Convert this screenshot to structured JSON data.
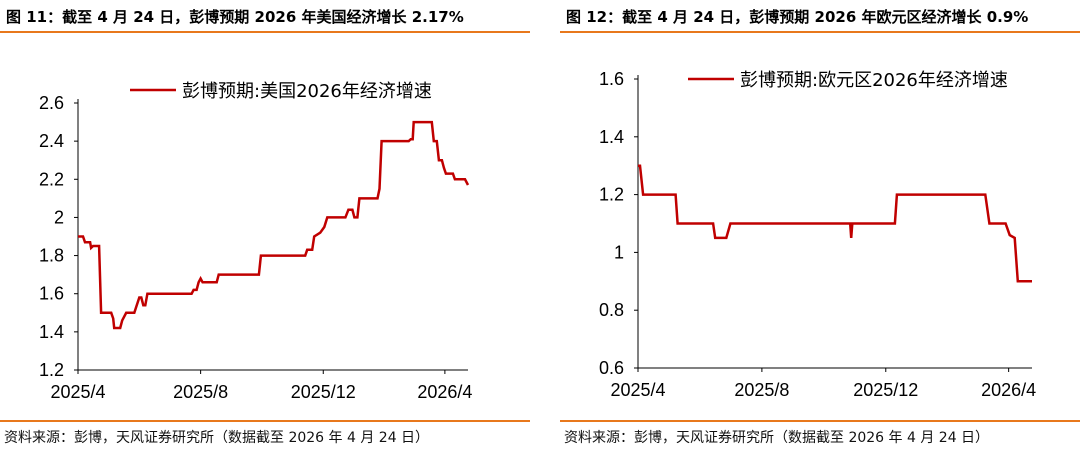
{
  "charts": [
    {
      "figure_title": "图 11：截至 4 月 24 日，彭博预期 2026 年美国经济增长 2.17%",
      "source": "资料来源：彭博，天风证券研究所（数据截至 2026 年 4 月 24 日）",
      "accent_color": "#c00000",
      "rule_color": "#e8781c"
    },
    {
      "figure_title": "图 12：截至 4 月 24 日，彭博预期 2026 年欧元区经济增长 0.9%",
      "source": "资料来源：彭博，天风证券研究所（数据截至 2026 年 4 月 24 日）",
      "accent_color": "#c00000",
      "rule_color": "#e8781c"
    }
  ],
  "chart_data": [
    {
      "type": "line",
      "title": "",
      "xlabel": "",
      "ylabel": "",
      "ylim": [
        1.2,
        2.6
      ],
      "yticks": [
        "2.6",
        "2.4",
        "2.2",
        "2",
        "1.8",
        "1.6",
        "1.4",
        "1.2"
      ],
      "ytick_values": [
        2.6,
        2.4,
        2.2,
        2.0,
        1.8,
        1.6,
        1.4,
        1.2
      ],
      "xlim": [
        "2025-04-01",
        "2026-04-24"
      ],
      "xticks": [
        "2025/4",
        "2025/8",
        "2025/12",
        "2026/4"
      ],
      "xtick_dates": [
        "2025-04-01",
        "2025-08-01",
        "2025-12-01",
        "2026-04-01"
      ],
      "grid": false,
      "legend_position": "top-center",
      "series": [
        {
          "name": "彭博预期:美国2026年经济增速",
          "color": "#c00000",
          "points": [
            [
              "2025-04-01",
              1.9
            ],
            [
              "2025-04-06",
              1.9
            ],
            [
              "2025-04-08",
              1.87
            ],
            [
              "2025-04-13",
              1.87
            ],
            [
              "2025-04-14",
              1.84
            ],
            [
              "2025-04-16",
              1.85
            ],
            [
              "2025-04-22",
              1.85
            ],
            [
              "2025-04-24",
              1.5
            ],
            [
              "2025-05-04",
              1.5
            ],
            [
              "2025-05-06",
              1.47
            ],
            [
              "2025-05-07",
              1.42
            ],
            [
              "2025-05-13",
              1.42
            ],
            [
              "2025-05-15",
              1.46
            ],
            [
              "2025-05-19",
              1.5
            ],
            [
              "2025-05-27",
              1.5
            ],
            [
              "2025-06-01",
              1.58
            ],
            [
              "2025-06-03",
              1.58
            ],
            [
              "2025-06-05",
              1.54
            ],
            [
              "2025-06-07",
              1.54
            ],
            [
              "2025-06-09",
              1.6
            ],
            [
              "2025-07-23",
              1.6
            ],
            [
              "2025-07-25",
              1.62
            ],
            [
              "2025-07-28",
              1.62
            ],
            [
              "2025-07-30",
              1.66
            ],
            [
              "2025-08-01",
              1.68
            ],
            [
              "2025-08-03",
              1.66
            ],
            [
              "2025-08-17",
              1.66
            ],
            [
              "2025-08-19",
              1.7
            ],
            [
              "2025-09-28",
              1.7
            ],
            [
              "2025-09-30",
              1.8
            ],
            [
              "2025-11-13",
              1.8
            ],
            [
              "2025-11-15",
              1.83
            ],
            [
              "2025-11-20",
              1.83
            ],
            [
              "2025-11-22",
              1.9
            ],
            [
              "2025-11-28",
              1.92
            ],
            [
              "2025-12-02",
              1.95
            ],
            [
              "2025-12-05",
              2.0
            ],
            [
              "2025-12-23",
              2.0
            ],
            [
              "2025-12-26",
              2.04
            ],
            [
              "2025-12-30",
              2.04
            ],
            [
              "2026-01-01",
              2.0
            ],
            [
              "2026-01-04",
              2.0
            ],
            [
              "2026-01-06",
              2.1
            ],
            [
              "2026-01-24",
              2.1
            ],
            [
              "2026-01-26",
              2.15
            ],
            [
              "2026-01-28",
              2.4
            ],
            [
              "2026-02-24",
              2.4
            ],
            [
              "2026-02-26",
              2.41
            ],
            [
              "2026-02-28",
              2.41
            ],
            [
              "2026-03-01",
              2.5
            ],
            [
              "2026-03-19",
              2.5
            ],
            [
              "2026-03-21",
              2.4
            ],
            [
              "2026-03-24",
              2.4
            ],
            [
              "2026-03-26",
              2.3
            ],
            [
              "2026-03-29",
              2.3
            ],
            [
              "2026-03-31",
              2.26
            ],
            [
              "2026-04-02",
              2.23
            ],
            [
              "2026-04-09",
              2.23
            ],
            [
              "2026-04-11",
              2.2
            ],
            [
              "2026-04-21",
              2.2
            ],
            [
              "2026-04-24",
              2.17
            ]
          ]
        }
      ]
    },
    {
      "type": "line",
      "title": "",
      "xlabel": "",
      "ylabel": "",
      "ylim": [
        0.6,
        1.6
      ],
      "yticks": [
        "1.6",
        "1.4",
        "1.2",
        "1",
        "0.8",
        "0.6"
      ],
      "ytick_values": [
        1.6,
        1.4,
        1.2,
        1.0,
        0.8,
        0.6
      ],
      "xlim": [
        "2025-04-01",
        "2026-04-24"
      ],
      "xticks": [
        "2025/4",
        "2025/8",
        "2025/12",
        "2026/4"
      ],
      "xtick_dates": [
        "2025-04-01",
        "2025-08-01",
        "2025-12-01",
        "2026-04-01"
      ],
      "grid": false,
      "legend_position": "top-center",
      "series": [
        {
          "name": "彭博预期:欧元区2026年经济增速",
          "color": "#c00000",
          "points": [
            [
              "2025-04-01",
              1.3
            ],
            [
              "2025-04-03",
              1.3
            ],
            [
              "2025-04-06",
              1.2
            ],
            [
              "2025-05-08",
              1.2
            ],
            [
              "2025-05-10",
              1.1
            ],
            [
              "2025-06-14",
              1.1
            ],
            [
              "2025-06-16",
              1.05
            ],
            [
              "2025-06-27",
              1.05
            ],
            [
              "2025-07-01",
              1.1
            ],
            [
              "2025-10-27",
              1.1
            ],
            [
              "2025-10-28",
              1.05
            ],
            [
              "2025-10-29",
              1.1
            ],
            [
              "2025-12-10",
              1.1
            ],
            [
              "2025-12-12",
              1.2
            ],
            [
              "2026-03-09",
              1.2
            ],
            [
              "2026-03-13",
              1.1
            ],
            [
              "2026-03-29",
              1.1
            ],
            [
              "2026-04-02",
              1.06
            ],
            [
              "2026-04-07",
              1.05
            ],
            [
              "2026-04-10",
              0.9
            ],
            [
              "2026-04-24",
              0.9
            ]
          ]
        }
      ]
    }
  ]
}
